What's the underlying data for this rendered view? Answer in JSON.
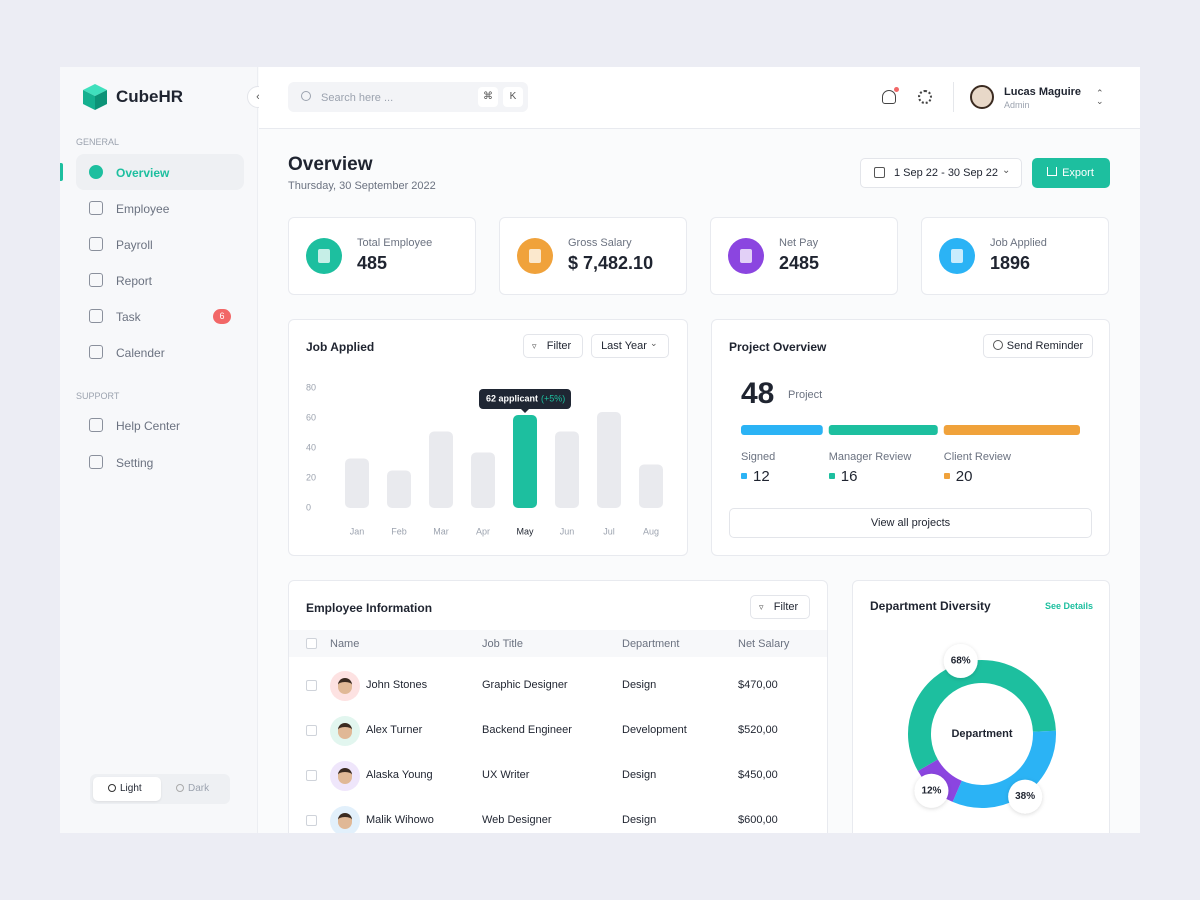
{
  "sidebar": {
    "brand": "CubeHR",
    "general_label": "GENERAL",
    "general": [
      {
        "label": "Overview"
      },
      {
        "label": "Employee"
      },
      {
        "label": "Payroll"
      },
      {
        "label": "Report"
      },
      {
        "label": "Task",
        "badge": 6
      },
      {
        "label": "Calender"
      }
    ],
    "support_label": "SUPPORT",
    "support": [
      "Help Center",
      "Setting"
    ],
    "theme": [
      "Light",
      "Dark"
    ]
  },
  "header": {
    "search": "Search here ...",
    "shortcut": [
      "⌘",
      "K"
    ],
    "user": {
      "name": "Lucas Maguire",
      "role": "Admin"
    }
  },
  "page": {
    "title": "Overview",
    "date": "Thursday, 30 September 2022",
    "date_range": "1 Sep 22 - 30 Sep 22",
    "export": "Export"
  },
  "stats": [
    {
      "label": "Total Employee",
      "value": "485",
      "color": "#1dbf9f"
    },
    {
      "label": "Gross Salary",
      "value": "$ 7,482.10",
      "color": "#f0a23b"
    },
    {
      "label": "Net Pay",
      "value": "2485",
      "color": "#8b45e0"
    },
    {
      "label": "Job Applied",
      "value": "1896",
      "color": "#2bb3f5"
    }
  ],
  "chart_data": [
    {
      "type": "bar",
      "title": "Job Applied",
      "filter": "Filter",
      "period": "Last Year",
      "categories": [
        "Jan",
        "Feb",
        "Mar",
        "Apr",
        "May",
        "Jun",
        "Jul",
        "Aug"
      ],
      "values": [
        33,
        25,
        51,
        37,
        62,
        51,
        64,
        29
      ],
      "colors": [
        "#e9eaee",
        "#e9eaee",
        "#e9eaee",
        "#e9eaee",
        "#1dbf9f",
        "#e9eaee",
        "#e9eaee",
        "#e9eaee"
      ],
      "ylim": [
        0,
        80
      ],
      "yticks": [
        0,
        20,
        40,
        60,
        80
      ],
      "tooltip": {
        "label": "62 applicant",
        "change": "(+5%)"
      }
    },
    {
      "type": "donut",
      "title": "Department Diversity",
      "link": "See Details",
      "center_label": "Department",
      "values": [
        68,
        38,
        12
      ],
      "value_labels": [
        "68%",
        "38%",
        "12%"
      ],
      "colors": [
        "#1dbf9f",
        "#2bb3f5",
        "#8b45e0"
      ]
    }
  ],
  "project_overview": {
    "title": "Project Overview",
    "button": "Send Reminder",
    "total": 48,
    "total_label": "Project",
    "items": [
      {
        "name": "Signed",
        "value": 12,
        "color": "#2bb3f5"
      },
      {
        "name": "Manager Review",
        "value": 16,
        "color": "#1dbf9f"
      },
      {
        "name": "Client Review",
        "value": 20,
        "color": "#f0a23b"
      }
    ],
    "link": "View all projects"
  },
  "employee_table": {
    "title": "Employee Information",
    "filter": "Filter",
    "columns": [
      "Name",
      "Job Title",
      "Department",
      "Net Salary"
    ],
    "rows": [
      [
        "John Stones",
        "Graphic Designer",
        "Design",
        "$470,00"
      ],
      [
        "Alex Turner",
        "Backend Engineer",
        "Development",
        "$520,00"
      ],
      [
        "Alaska Young",
        "UX Writer",
        "Design",
        "$450,00"
      ],
      [
        "Malik Wihowo",
        "Web Designer",
        "Design",
        "$600,00"
      ]
    ]
  }
}
